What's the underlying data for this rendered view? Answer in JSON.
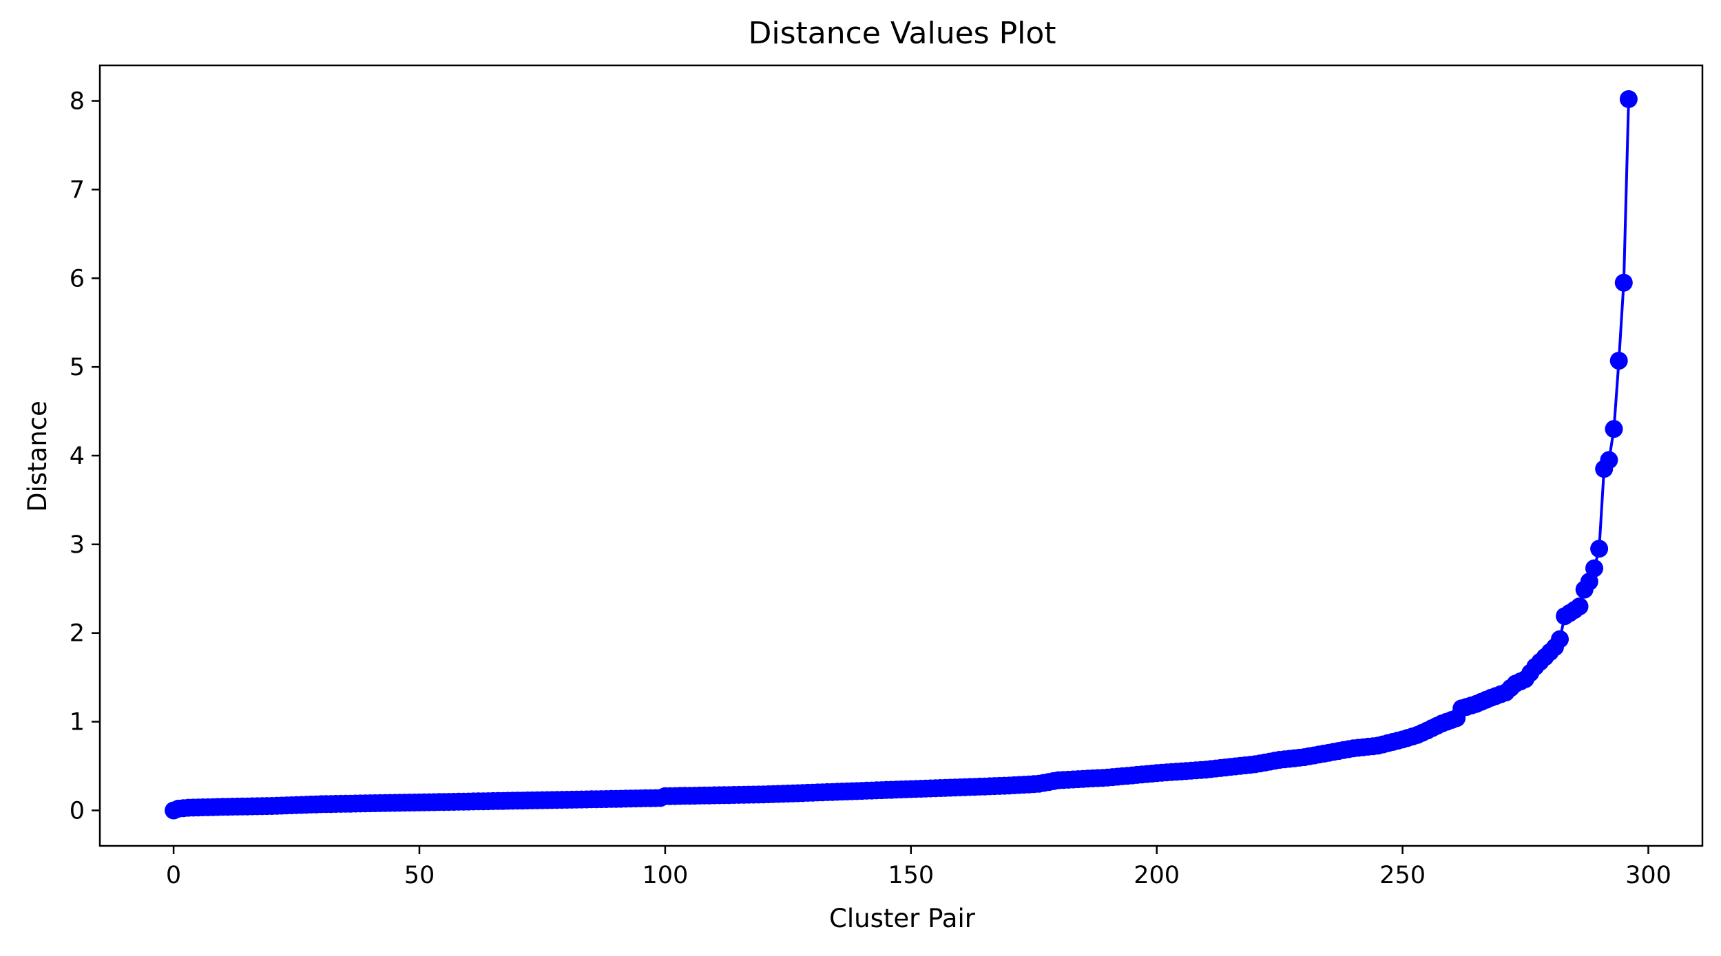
{
  "chart_data": {
    "type": "line",
    "title": "Distance Values Plot",
    "xlabel": "Cluster Pair",
    "ylabel": "Distance",
    "xlim": [
      -15,
      311
    ],
    "ylim": [
      -0.4,
      8.4
    ],
    "xticks": [
      0,
      50,
      100,
      150,
      200,
      250,
      300
    ],
    "yticks": [
      0,
      1,
      2,
      3,
      4,
      5,
      6,
      7,
      8
    ],
    "grid": false,
    "series": [
      {
        "color": "#0000ff",
        "marker": "circle",
        "curve_anchors": [
          [
            0,
            0.0
          ],
          [
            1,
            0.02
          ],
          [
            3,
            0.03
          ],
          [
            10,
            0.04
          ],
          [
            20,
            0.05
          ],
          [
            30,
            0.07
          ],
          [
            40,
            0.08
          ],
          [
            50,
            0.09
          ],
          [
            60,
            0.1
          ],
          [
            70,
            0.11
          ],
          [
            80,
            0.12
          ],
          [
            90,
            0.13
          ],
          [
            99,
            0.14
          ],
          [
            100,
            0.16
          ],
          [
            110,
            0.17
          ],
          [
            120,
            0.18
          ],
          [
            130,
            0.2
          ],
          [
            140,
            0.22
          ],
          [
            150,
            0.24
          ],
          [
            160,
            0.26
          ],
          [
            170,
            0.28
          ],
          [
            176,
            0.3
          ],
          [
            180,
            0.34
          ],
          [
            190,
            0.37
          ],
          [
            200,
            0.42
          ],
          [
            210,
            0.46
          ],
          [
            220,
            0.52
          ],
          [
            225,
            0.57
          ],
          [
            230,
            0.6
          ],
          [
            235,
            0.65
          ],
          [
            240,
            0.7
          ],
          [
            245,
            0.73
          ],
          [
            250,
            0.8
          ],
          [
            253,
            0.85
          ],
          [
            255,
            0.9
          ],
          [
            258,
            0.98
          ],
          [
            261,
            1.04
          ],
          [
            262,
            1.15
          ],
          [
            265,
            1.2
          ],
          [
            268,
            1.27
          ],
          [
            271,
            1.33
          ],
          [
            273,
            1.43
          ],
          [
            275,
            1.48
          ],
          [
            277,
            1.62
          ],
          [
            279,
            1.73
          ],
          [
            281,
            1.84
          ],
          [
            282,
            1.93
          ],
          [
            283,
            2.19
          ],
          [
            285,
            2.26
          ],
          [
            286,
            2.3
          ],
          [
            287,
            2.49
          ],
          [
            288,
            2.58
          ],
          [
            289,
            2.73
          ],
          [
            290,
            2.95
          ],
          [
            291,
            3.85
          ],
          [
            292,
            3.95
          ],
          [
            293,
            4.3
          ],
          [
            294,
            5.07
          ],
          [
            295,
            5.95
          ],
          [
            296,
            8.02
          ]
        ]
      }
    ]
  }
}
